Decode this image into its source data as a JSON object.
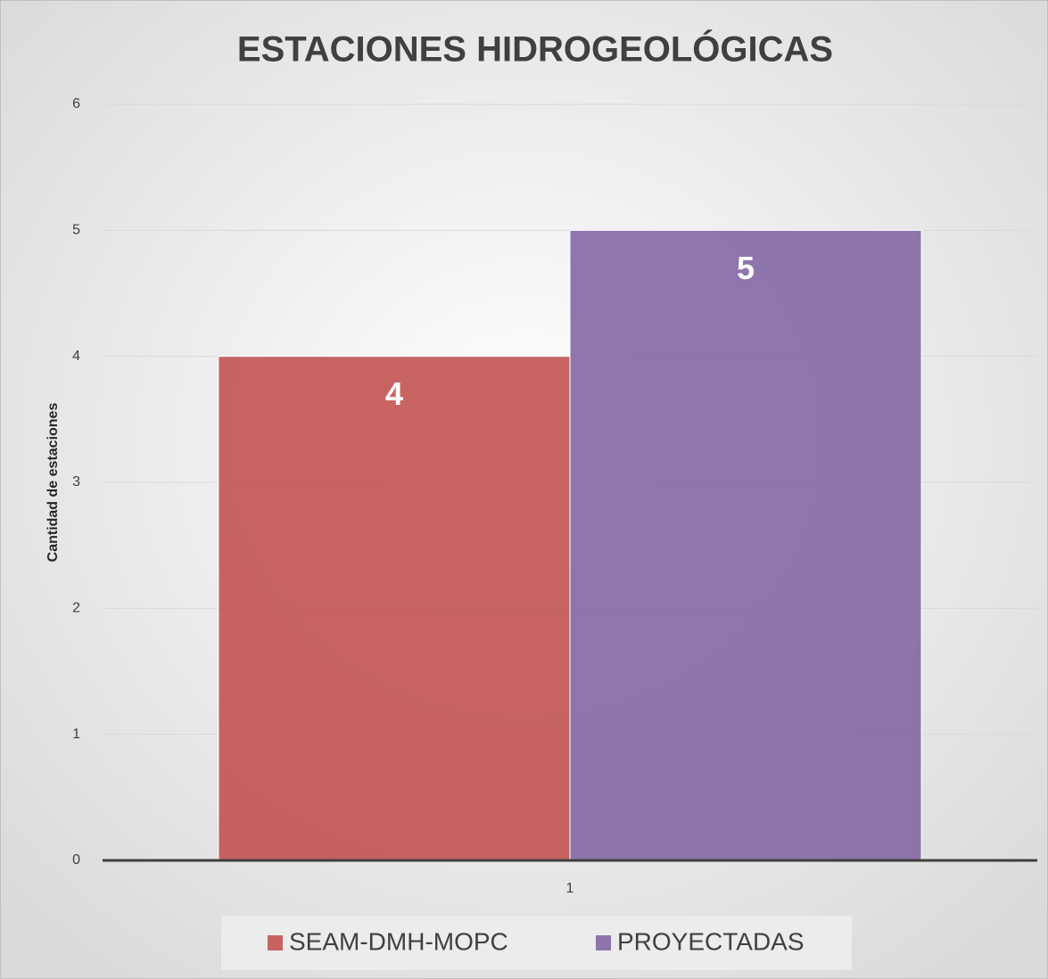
{
  "chart_data": {
    "type": "bar",
    "title": "ESTACIONES HIDROGEOLÓGICAS",
    "y_label": "Cantidad de estaciones",
    "categories": [
      "1"
    ],
    "series": [
      {
        "name": "SEAM-DMH-MOPC",
        "color": "#c0504d",
        "values": [
          4
        ]
      },
      {
        "name": "PROYECTADAS",
        "color": "#8064a2",
        "values": [
          5
        ]
      }
    ],
    "ylim": [
      0,
      6
    ],
    "yticks": [
      0,
      1,
      2,
      3,
      4,
      5,
      6
    ],
    "grid": true,
    "legend": "bottom"
  }
}
